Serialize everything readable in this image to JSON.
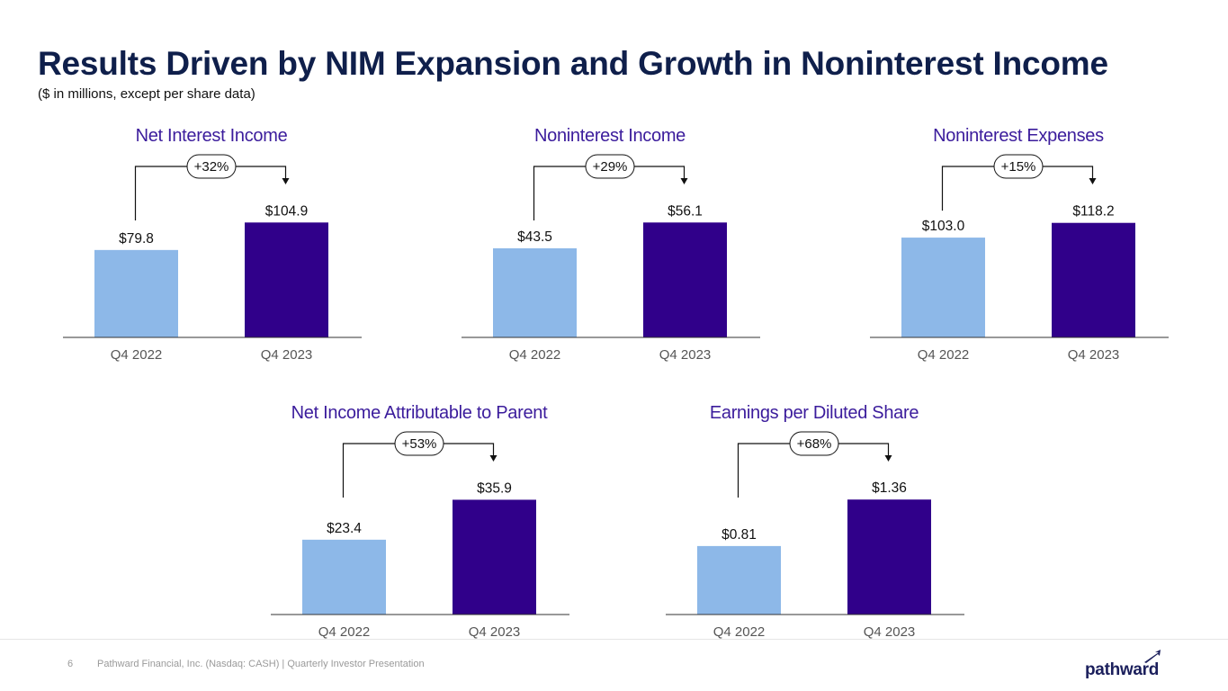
{
  "title": "Results Driven by NIM Expansion and Growth in Noninterest Income",
  "subtitle": "($ in millions, except per share data)",
  "colors": {
    "prior": "#8db8e8",
    "current": "#30008a",
    "title": "#0f1f4b",
    "chart_title": "#3b1c9c"
  },
  "chart_data": [
    {
      "type": "bar",
      "title": "Net Interest Income",
      "categories": [
        "Q4 2022",
        "Q4 2023"
      ],
      "values": [
        79.8,
        104.9
      ],
      "labels": [
        "$79.8",
        "$104.9"
      ],
      "change": "+32%",
      "ylim": [
        0,
        115
      ]
    },
    {
      "type": "bar",
      "title": "Noninterest Income",
      "categories": [
        "Q4 2022",
        "Q4 2023"
      ],
      "values": [
        43.5,
        56.1
      ],
      "labels": [
        "$43.5",
        "$56.1"
      ],
      "change": "+29%",
      "ylim": [
        0,
        61.5
      ]
    },
    {
      "type": "bar",
      "title": "Noninterest Expenses",
      "categories": [
        "Q4 2022",
        "Q4 2023"
      ],
      "values": [
        103.0,
        118.2
      ],
      "labels": [
        "$103.0",
        "$118.2"
      ],
      "change": "+15%",
      "ylim": [
        0,
        130
      ]
    },
    {
      "type": "bar",
      "title": "Net Income Attributable to Parent",
      "categories": [
        "Q4 2022",
        "Q4 2023"
      ],
      "values": [
        23.4,
        35.9
      ],
      "labels": [
        "$23.4",
        "$35.9"
      ],
      "change": "+53%",
      "ylim": [
        0,
        39.4
      ]
    },
    {
      "type": "bar",
      "title": "Earnings per Diluted Share",
      "categories": [
        "Q4 2022",
        "Q4 2023"
      ],
      "values": [
        0.81,
        1.36
      ],
      "labels": [
        "$0.81",
        "$1.36"
      ],
      "change": "+68%",
      "ylim": [
        0,
        1.49
      ]
    }
  ],
  "footer": {
    "page_number": "6",
    "text": "Pathward Financial, Inc. (Nasdaq: CASH) | Quarterly Investor Presentation",
    "logo_text": "pathward"
  }
}
